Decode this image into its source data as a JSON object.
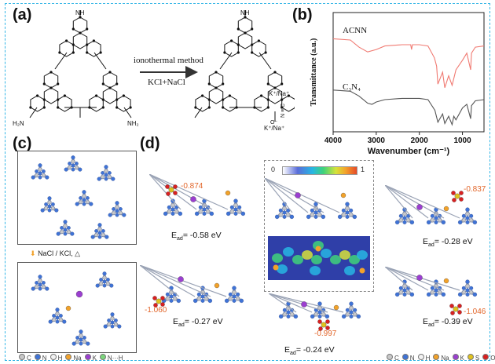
{
  "panels": {
    "a": "(a)",
    "b": "(b)",
    "c": "(c)",
    "d": "(d)"
  },
  "panel_a": {
    "arrow_top": "ionothermal method",
    "arrow_bottom": "KCl+NaCl",
    "nh2_left": "H₂N",
    "nh2_right": "NH₂",
    "nh_top": "NH",
    "counterion_1": "K⁺/Na⁺",
    "counterion_2": "K⁺/Na⁺",
    "cyano": "N ≡ C",
    "oxygen_minus": "O⁻"
  },
  "chart_data": {
    "type": "line",
    "title": "",
    "xlabel": "Wavenumber (cm⁻¹)",
    "ylabel": "Transmittance (a.u.)",
    "xlim": [
      4000,
      500
    ],
    "x_ticks": [
      4000,
      3000,
      2000,
      1000
    ],
    "series": [
      {
        "name": "ACNN",
        "color": "#f07a72",
        "x": [
          4000,
          3600,
          3400,
          3200,
          3000,
          2800,
          2400,
          2200,
          2180,
          2160,
          2000,
          1800,
          1650,
          1600,
          1570,
          1460,
          1410,
          1320,
          1240,
          1150,
          1000,
          900,
          810,
          790,
          700,
          500
        ],
        "y": [
          0.78,
          0.77,
          0.71,
          0.67,
          0.69,
          0.72,
          0.73,
          0.73,
          0.69,
          0.73,
          0.73,
          0.72,
          0.62,
          0.55,
          0.4,
          0.5,
          0.37,
          0.47,
          0.39,
          0.52,
          0.6,
          0.66,
          0.52,
          0.66,
          0.71,
          0.72
        ]
      },
      {
        "name": "C₃N₄",
        "color": "#555555",
        "x": [
          4000,
          3600,
          3400,
          3200,
          3100,
          3000,
          2800,
          2400,
          2000,
          1800,
          1640,
          1570,
          1460,
          1410,
          1320,
          1240,
          1200,
          1150,
          1000,
          900,
          810,
          790,
          700,
          500
        ],
        "y": [
          0.35,
          0.34,
          0.3,
          0.24,
          0.23,
          0.25,
          0.27,
          0.28,
          0.28,
          0.27,
          0.18,
          0.08,
          0.15,
          0.07,
          0.13,
          0.06,
          0.13,
          0.1,
          0.2,
          0.23,
          0.11,
          0.22,
          0.26,
          0.27
        ]
      }
    ],
    "legend_placement": "inline labels above each curve",
    "grid": false
  },
  "panel_c": {
    "step_label": "NaCl / KCl, △",
    "legend": [
      "C",
      "N",
      "H",
      "Na",
      "K",
      "N···H"
    ],
    "legend_colors": [
      "#c8c8c8",
      "#3f73d6",
      "#f2f2f2",
      "#f2a22a",
      "#9b3fd0",
      "#7bd67b"
    ]
  },
  "panel_d": {
    "colorbar_min": "0",
    "colorbar_max": "1",
    "adsorptions": [
      {
        "eads": "-0.58 eV",
        "charge": "-0.874"
      },
      {
        "eads": "-0.27 eV",
        "charge": "-1.060"
      },
      {
        "eads": "-0.24 eV",
        "charge": "-0.997"
      },
      {
        "eads": "-0.28 eV",
        "charge": "-0.837"
      },
      {
        "eads": "-0.39 eV",
        "charge": "-1.046"
      }
    ],
    "eads_prefix": "E",
    "eads_sub": "ad",
    "eads_eq": "=",
    "legend": [
      "C",
      "N",
      "H",
      "Na",
      "K",
      "S",
      "O"
    ],
    "legend_colors": [
      "#c8c8c8",
      "#3f73d6",
      "#f2f2f2",
      "#f2a22a",
      "#9b3fd0",
      "#e0c21e",
      "#d92020"
    ]
  }
}
